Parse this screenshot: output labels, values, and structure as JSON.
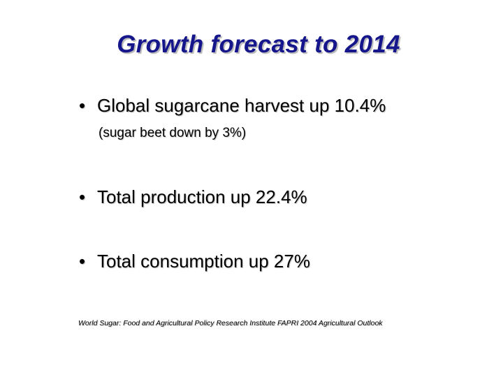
{
  "slide": {
    "title": "Growth forecast to 2014",
    "bullet_glyph": "•",
    "bullets": [
      {
        "text": "Global sugarcane harvest up 10.4%"
      },
      {
        "text": "Total production up 22.4%"
      },
      {
        "text": "Total consumption up 27%"
      }
    ],
    "sub_note": "(sugar beet down by 3%)",
    "source": "World Sugar: Food and Agricultural Policy Research Institute FAPRI 2004 Agricultural Outlook"
  },
  "colors": {
    "title": "#16168c",
    "text": "#000000",
    "background": "#ffffff"
  }
}
